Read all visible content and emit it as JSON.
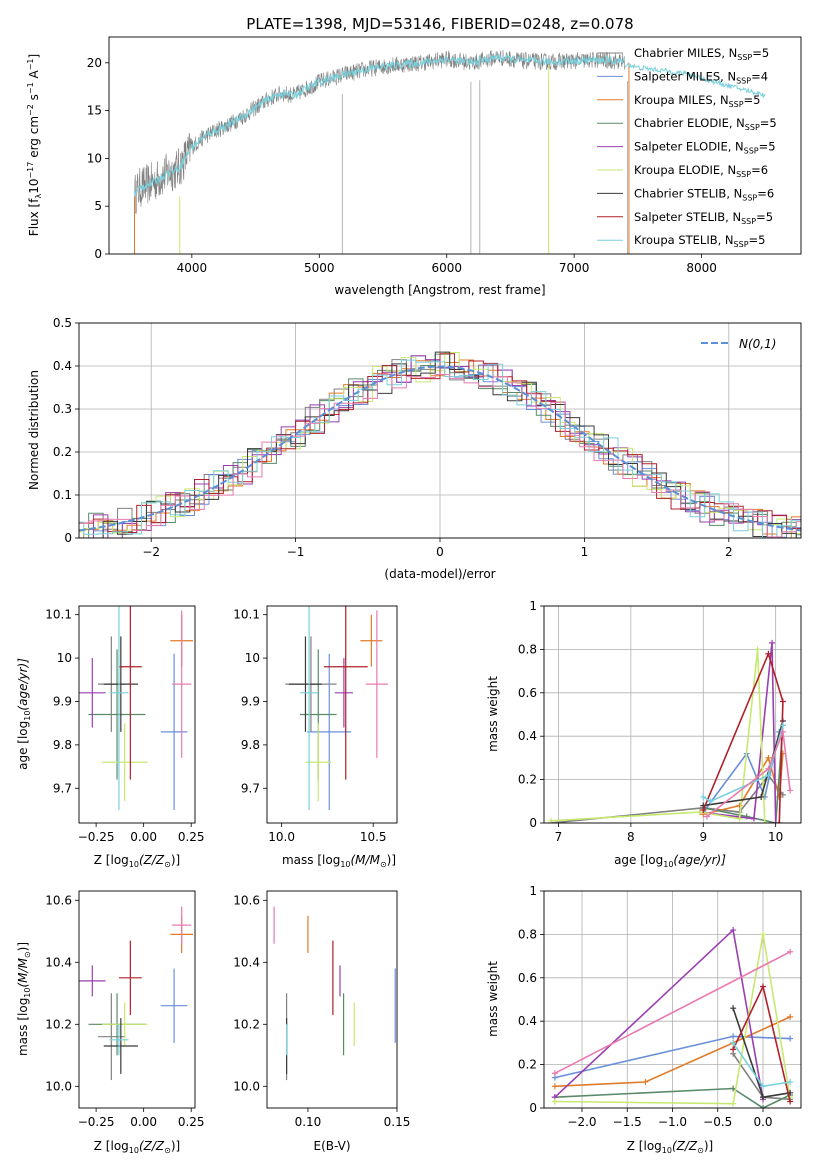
{
  "chart_data": [
    {
      "type": "line",
      "title": "PLATE=1398, MJD=53146, FIBERID=0248, z=0.078",
      "xlabel": "wavelength [Angstrom, rest frame]",
      "ylabel": "Flux [f",
      "ylabel_sub": "λ",
      "ylabel_mid": "10",
      "ylabel_exp": "−17",
      "ylabel_tail": " erg cm",
      "ylabel_exp2": "−2",
      "ylabel_tail2": " s",
      "ylabel_exp3": "−1",
      "ylabel_tail3": " A",
      "ylabel_exp4": "−1",
      "ylabel_end": "]",
      "xlim": [
        3350,
        8780
      ],
      "ylim": [
        0,
        22.7
      ],
      "xticks": [
        4000,
        5000,
        6000,
        7000,
        8000
      ],
      "yticks": [
        0,
        5,
        10,
        15,
        20
      ],
      "legend_position": "right",
      "series": [
        {
          "name": "Chabrier MILES, N",
          "sub": "SSP",
          "count": "=5",
          "color": "#808080"
        },
        {
          "name": "Salpeter MILES, N",
          "sub": "SSP",
          "count": "=4",
          "color": "#6a8fd8"
        },
        {
          "name": "Kroupa MILES, N",
          "sub": "SSP",
          "count": "=5",
          "color": "#e07b2a"
        },
        {
          "name": "Chabrier ELODIE, N",
          "sub": "SSP",
          "count": "=5",
          "color": "#5a8a6a"
        },
        {
          "name": "Salpeter ELODIE, N",
          "sub": "SSP",
          "count": "=5",
          "color": "#9b3fb0"
        },
        {
          "name": "Kroupa ELODIE, N",
          "sub": "SSP",
          "count": "=6",
          "color": "#c8e870"
        },
        {
          "name": "Chabrier STELIB, N",
          "sub": "SSP",
          "count": "=6",
          "color": "#3a3a3a"
        },
        {
          "name": "Salpeter STELIB, N",
          "sub": "SSP",
          "count": "=5",
          "color": "#b0202a"
        },
        {
          "name": "Kroupa STELIB, N",
          "sub": "SSP",
          "count": "=5",
          "color": "#78d0dc"
        }
      ],
      "data_wavelength": [
        3550,
        3600,
        3700,
        3800,
        3900,
        4000,
        4100,
        4200,
        4300,
        4400,
        4500,
        4600,
        4700,
        4800,
        4900,
        5000,
        5200,
        5400,
        5600,
        5800,
        6000,
        6200,
        6400,
        6600,
        6800,
        7000,
        7200,
        7400
      ],
      "data_flux": [
        6.2,
        7.0,
        7.5,
        8.4,
        9.0,
        11.2,
        12.3,
        13.0,
        13.6,
        14.4,
        15.3,
        16.2,
        16.8,
        16.6,
        17.3,
        18.0,
        18.8,
        19.4,
        19.8,
        20.0,
        20.4,
        20.0,
        20.6,
        20.2,
        20.1,
        20.2,
        20.3,
        20.1
      ],
      "model_wavelength": [
        7400,
        7500,
        7700,
        7900,
        8100,
        8300,
        8500
      ],
      "model_flux": [
        19.9,
        19.5,
        19.2,
        18.8,
        18.0,
        17.3,
        16.6
      ],
      "gaps": [
        5180,
        6190,
        6260,
        6800,
        7420
      ]
    },
    {
      "type": "bar",
      "xlabel": "(data-model)/error",
      "ylabel": "Normed distribution",
      "xlim": [
        -2.5,
        2.5
      ],
      "ylim": [
        0,
        0.5
      ],
      "xticks": [
        -2,
        -1,
        0,
        1,
        2
      ],
      "yticks": [
        0.0,
        0.1,
        0.2,
        0.3,
        0.4,
        0.5
      ],
      "legend_label": "N(0,1)",
      "legend_position": "top-right",
      "grid": true,
      "bin_width": 0.1,
      "distribution_mean": 0,
      "distribution_sigma": 1
    },
    {
      "type": "scatter",
      "xlabel": "Z [log",
      "xlabel_sub": "10",
      "xlabel_tail": "(Z/Z",
      "xlabel_sub2": "⊙",
      "xlabel_end": ")]",
      "ylabel": "age  [log",
      "ylabel_sub": "10",
      "ylabel_tail": "(age/yr)]",
      "xlim": [
        -0.34,
        0.27
      ],
      "ylim": [
        9.62,
        10.12
      ],
      "xticks": [
        -0.25,
        0.0,
        0.25
      ],
      "xtick_labels": [
        "−0.25",
        "0.00",
        "0.25"
      ],
      "yticks": [
        9.7,
        9.8,
        9.9,
        10.0,
        10.1
      ],
      "points": [
        {
          "x": -0.17,
          "y": 9.94,
          "xerr": 0.07,
          "yerr": 0.11,
          "color": "#808080"
        },
        {
          "x": 0.16,
          "y": 9.83,
          "xerr": 0.07,
          "yerr": 0.18,
          "color": "#6a8fd8"
        },
        {
          "x": 0.2,
          "y": 10.04,
          "xerr": 0.06,
          "yerr": 0.06,
          "color": "#e07b2a"
        },
        {
          "x": -0.14,
          "y": 9.87,
          "xerr": 0.15,
          "yerr": 0.15,
          "color": "#5a8a6a"
        },
        {
          "x": -0.27,
          "y": 9.92,
          "xerr": 0.07,
          "yerr": 0.08,
          "color": "#9b3fb0"
        },
        {
          "x": -0.1,
          "y": 9.76,
          "xerr": 0.12,
          "yerr": 0.09,
          "color": "#c8e870"
        },
        {
          "x": -0.12,
          "y": 9.94,
          "xerr": 0.09,
          "yerr": 0.11,
          "color": "#3a3a3a"
        },
        {
          "x": -0.07,
          "y": 9.98,
          "xerr": 0.06,
          "yerr": 0.26,
          "color": "#b0202a"
        },
        {
          "x": -0.13,
          "y": 9.92,
          "xerr": 0.05,
          "yerr": 0.27,
          "color": "#78d0dc"
        },
        {
          "x": 0.2,
          "y": 9.94,
          "xerr": 0.05,
          "yerr": 0.17,
          "color": "#e87ab0"
        }
      ]
    },
    {
      "type": "scatter",
      "xlabel": "mass [log",
      "xlabel_sub": "10",
      "xlabel_tail": "(M/M",
      "xlabel_sub2": "⊙",
      "xlabel_end": ")]",
      "xlim": [
        9.92,
        10.63
      ],
      "ylim": [
        9.62,
        10.12
      ],
      "xticks": [
        10.0,
        10.5
      ],
      "xtick_labels": [
        "10.0",
        "10.5"
      ],
      "yticks": [
        9.7,
        9.8,
        9.9,
        10.0,
        10.1
      ],
      "points": [
        {
          "x": 10.16,
          "y": 9.94,
          "xerr": 0.14,
          "yerr": 0.11,
          "color": "#808080"
        },
        {
          "x": 10.26,
          "y": 9.83,
          "xerr": 0.12,
          "yerr": 0.18,
          "color": "#6a8fd8"
        },
        {
          "x": 10.49,
          "y": 10.04,
          "xerr": 0.06,
          "yerr": 0.06,
          "color": "#e07b2a"
        },
        {
          "x": 10.2,
          "y": 9.87,
          "xerr": 0.1,
          "yerr": 0.15,
          "color": "#5a8a6a"
        },
        {
          "x": 10.34,
          "y": 9.92,
          "xerr": 0.05,
          "yerr": 0.08,
          "color": "#9b3fb0"
        },
        {
          "x": 10.2,
          "y": 9.76,
          "xerr": 0.07,
          "yerr": 0.09,
          "color": "#c8e870"
        },
        {
          "x": 10.13,
          "y": 9.94,
          "xerr": 0.09,
          "yerr": 0.11,
          "color": "#3a3a3a"
        },
        {
          "x": 10.35,
          "y": 9.98,
          "xerr": 0.12,
          "yerr": 0.26,
          "color": "#b0202a"
        },
        {
          "x": 10.15,
          "y": 9.92,
          "xerr": 0.05,
          "yerr": 0.27,
          "color": "#78d0dc"
        },
        {
          "x": 10.52,
          "y": 9.94,
          "xerr": 0.06,
          "yerr": 0.17,
          "color": "#e87ab0"
        }
      ]
    },
    {
      "type": "line",
      "xlabel": "age  [log",
      "xlabel_sub": "10",
      "xlabel_tail": "(age/yr)]",
      "ylabel": "mass weight",
      "xlim": [
        6.8,
        10.35
      ],
      "ylim": [
        0,
        1.0
      ],
      "xticks": [
        7,
        8,
        9,
        10
      ],
      "yticks": [
        0.0,
        0.2,
        0.4,
        0.6,
        0.8,
        1.0
      ],
      "grid": true,
      "series": [
        {
          "color": "#808080",
          "x": [
            6.9,
            9.0,
            9.5,
            9.9,
            10.1
          ],
          "y": [
            0.0,
            0.07,
            0.05,
            0.22,
            0.13
          ]
        },
        {
          "color": "#6a8fd8",
          "x": [
            9.0,
            9.6,
            9.85,
            10.05
          ],
          "y": [
            0.05,
            0.32,
            0.12,
            0.42
          ]
        },
        {
          "color": "#e07b2a",
          "x": [
            9.0,
            9.5,
            9.9,
            10.05,
            10.1
          ],
          "y": [
            0.04,
            0.08,
            0.3,
            0.12,
            0.32
          ]
        },
        {
          "color": "#5a8a6a",
          "x": [
            9.0,
            9.6,
            10.0,
            10.1
          ],
          "y": [
            0.07,
            0.03,
            0.0,
            0.45
          ]
        },
        {
          "color": "#9b3fb0",
          "x": [
            8.95,
            9.7,
            9.95,
            10.0
          ],
          "y": [
            0.05,
            0.02,
            0.83,
            0.0
          ]
        },
        {
          "color": "#c8e870",
          "x": [
            6.9,
            8.95,
            9.5,
            9.75,
            9.85
          ],
          "y": [
            0.01,
            0.05,
            0.02,
            0.8,
            0.0
          ]
        },
        {
          "color": "#3a3a3a",
          "x": [
            9.0,
            9.8,
            10.1
          ],
          "y": [
            0.08,
            0.12,
            0.47
          ]
        },
        {
          "color": "#b0202a",
          "x": [
            9.0,
            9.9,
            10.1,
            10.05
          ],
          "y": [
            0.06,
            0.78,
            0.56,
            0.0
          ]
        },
        {
          "color": "#78d0dc",
          "x": [
            9.0,
            9.1,
            9.9,
            10.1
          ],
          "y": [
            0.12,
            0.1,
            0.22,
            0.45
          ]
        },
        {
          "color": "#e87ab0",
          "x": [
            9.05,
            9.9,
            10.1,
            10.2
          ],
          "y": [
            0.03,
            0.25,
            0.42,
            0.15
          ]
        }
      ]
    },
    {
      "type": "scatter",
      "xlabel": "Z [log",
      "xlabel_sub": "10",
      "xlabel_tail": "(Z/Z",
      "xlabel_sub2": "⊙",
      "xlabel_end": ")]",
      "ylabel": "mass [log",
      "ylabel_sub": "10",
      "ylabel_tail": "(M/M",
      "ylabel_sub2": "⊙",
      "ylabel_end": ")]",
      "xlim": [
        -0.34,
        0.27
      ],
      "ylim": [
        9.93,
        10.63
      ],
      "xticks": [
        -0.25,
        0.0,
        0.25
      ],
      "xtick_labels": [
        "−0.25",
        "0.00",
        "0.25"
      ],
      "yticks": [
        10.0,
        10.2,
        10.4,
        10.6
      ],
      "ytick_labels": [
        "10.0",
        "10.2",
        "10.4",
        "10.6"
      ],
      "points": [
        {
          "x": -0.17,
          "y": 10.16,
          "xerr": 0.07,
          "yerr": 0.14,
          "color": "#808080"
        },
        {
          "x": 0.16,
          "y": 10.26,
          "xerr": 0.07,
          "yerr": 0.12,
          "color": "#6a8fd8"
        },
        {
          "x": 0.2,
          "y": 10.49,
          "xerr": 0.06,
          "yerr": 0.06,
          "color": "#e07b2a"
        },
        {
          "x": -0.14,
          "y": 10.2,
          "xerr": 0.15,
          "yerr": 0.1,
          "color": "#5a8a6a"
        },
        {
          "x": -0.27,
          "y": 10.34,
          "xerr": 0.07,
          "yerr": 0.05,
          "color": "#9b3fb0"
        },
        {
          "x": -0.1,
          "y": 10.2,
          "xerr": 0.12,
          "yerr": 0.07,
          "color": "#c8e870"
        },
        {
          "x": -0.12,
          "y": 10.13,
          "xerr": 0.09,
          "yerr": 0.09,
          "color": "#3a3a3a"
        },
        {
          "x": -0.07,
          "y": 10.35,
          "xerr": 0.06,
          "yerr": 0.12,
          "color": "#b0202a"
        },
        {
          "x": -0.13,
          "y": 10.15,
          "xerr": 0.05,
          "yerr": 0.05,
          "color": "#78d0dc"
        },
        {
          "x": 0.2,
          "y": 10.52,
          "xerr": 0.05,
          "yerr": 0.06,
          "color": "#e87ab0"
        }
      ]
    },
    {
      "type": "scatter",
      "xlabel": "E(B-V)",
      "xlim": [
        0.077,
        0.15
      ],
      "ylim": [
        9.93,
        10.63
      ],
      "xticks": [
        0.1,
        0.15
      ],
      "xtick_labels": [
        "0.10",
        "0.15"
      ],
      "yticks": [
        10.0,
        10.2,
        10.4,
        10.6
      ],
      "ytick_labels": [
        "10.0",
        "10.2",
        "10.4",
        "10.6"
      ],
      "points": [
        {
          "x": 0.088,
          "y": 10.16,
          "yerr": 0.14,
          "color": "#808080"
        },
        {
          "x": 0.149,
          "y": 10.26,
          "yerr": 0.12,
          "color": "#6a8fd8"
        },
        {
          "x": 0.1,
          "y": 10.49,
          "yerr": 0.06,
          "color": "#e07b2a"
        },
        {
          "x": 0.12,
          "y": 10.2,
          "yerr": 0.1,
          "color": "#5a8a6a"
        },
        {
          "x": 0.118,
          "y": 10.34,
          "yerr": 0.05,
          "color": "#9b3fb0"
        },
        {
          "x": 0.126,
          "y": 10.2,
          "yerr": 0.07,
          "color": "#c8e870"
        },
        {
          "x": 0.088,
          "y": 10.13,
          "yerr": 0.09,
          "color": "#3a3a3a"
        },
        {
          "x": 0.114,
          "y": 10.35,
          "yerr": 0.12,
          "color": "#b0202a"
        },
        {
          "x": 0.088,
          "y": 10.15,
          "yerr": 0.05,
          "color": "#78d0dc"
        },
        {
          "x": 0.081,
          "y": 10.52,
          "yerr": 0.06,
          "color": "#e87ab0"
        }
      ]
    },
    {
      "type": "line",
      "xlabel": "Z [log",
      "xlabel_sub": "10",
      "xlabel_tail": "(Z/Z",
      "xlabel_sub2": "⊙",
      "xlabel_end": ")]",
      "ylabel": "mass weight",
      "xlim": [
        -2.42,
        0.42
      ],
      "ylim": [
        0,
        1.0
      ],
      "xticks": [
        -2.0,
        -1.5,
        -1.0,
        -0.5,
        0.0
      ],
      "xtick_labels": [
        "−2.0",
        "−1.5",
        "−1.0",
        "−0.5",
        "0.0"
      ],
      "yticks": [
        0.0,
        0.2,
        0.4,
        0.6,
        0.8,
        1.0
      ],
      "grid": true,
      "series": [
        {
          "color": "#808080",
          "x": [
            -0.33,
            0.0,
            0.3
          ],
          "y": [
            0.25,
            0.05,
            0.04
          ]
        },
        {
          "color": "#6a8fd8",
          "x": [
            -2.3,
            -0.33,
            0.3
          ],
          "y": [
            0.14,
            0.33,
            0.32
          ]
        },
        {
          "color": "#e07b2a",
          "x": [
            -2.3,
            -1.3,
            -0.33,
            0.3
          ],
          "y": [
            0.1,
            0.12,
            0.3,
            0.42
          ]
        },
        {
          "color": "#5a8a6a",
          "x": [
            -2.3,
            -0.33,
            0.0,
            0.3
          ],
          "y": [
            0.05,
            0.09,
            0.0,
            0.06
          ]
        },
        {
          "color": "#9b3fb0",
          "x": [
            -2.3,
            -0.33,
            0.0
          ],
          "y": [
            0.05,
            0.82,
            0.04
          ]
        },
        {
          "color": "#c8e870",
          "x": [
            -2.3,
            -0.33,
            0.0,
            0.3
          ],
          "y": [
            0.03,
            0.02,
            0.8,
            0.05
          ]
        },
        {
          "color": "#3a3a3a",
          "x": [
            -0.33,
            0.0,
            0.3
          ],
          "y": [
            0.46,
            0.05,
            0.07
          ]
        },
        {
          "color": "#b0202a",
          "x": [
            -0.33,
            0.0,
            0.3
          ],
          "y": [
            0.27,
            0.56,
            0.03
          ]
        },
        {
          "color": "#78d0dc",
          "x": [
            -0.33,
            0.0,
            0.3
          ],
          "y": [
            0.3,
            0.1,
            0.12
          ]
        },
        {
          "color": "#e87ab0",
          "x": [
            -2.3,
            0.3
          ],
          "y": [
            0.16,
            0.72
          ]
        }
      ]
    }
  ]
}
